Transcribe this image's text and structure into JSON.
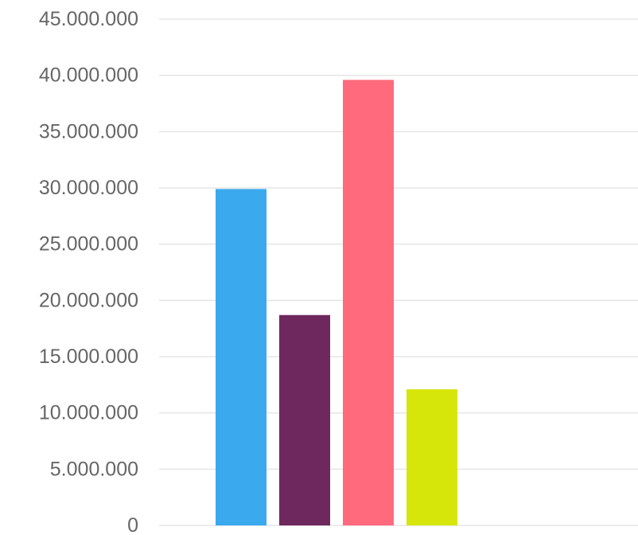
{
  "chart_data": {
    "type": "bar",
    "title": "",
    "xlabel": "",
    "ylabel": "",
    "ylim": [
      0,
      45000000
    ],
    "y_ticks": [
      {
        "value": 0,
        "label": "0"
      },
      {
        "value": 5000000,
        "label": "5.000.000"
      },
      {
        "value": 10000000,
        "label": "10.000.000"
      },
      {
        "value": 15000000,
        "label": "15.000.000"
      },
      {
        "value": 20000000,
        "label": "20.000.000"
      },
      {
        "value": 25000000,
        "label": "25.000.000"
      },
      {
        "value": 30000000,
        "label": "30.000.000"
      },
      {
        "value": 35000000,
        "label": "35.000.000"
      },
      {
        "value": 40000000,
        "label": "40.000.000"
      },
      {
        "value": 45000000,
        "label": "45.000.000"
      }
    ],
    "grid": true,
    "legend": "none",
    "bars": [
      {
        "value": 29900000,
        "color": "#3aa9ee"
      },
      {
        "value": 18700000,
        "color": "#6e285e"
      },
      {
        "value": 39600000,
        "color": "#ff6b7c"
      },
      {
        "value": 12100000,
        "color": "#d6e60a"
      }
    ],
    "colors": {
      "grid": "#e5e5e5",
      "tick_text": "#666666"
    }
  }
}
